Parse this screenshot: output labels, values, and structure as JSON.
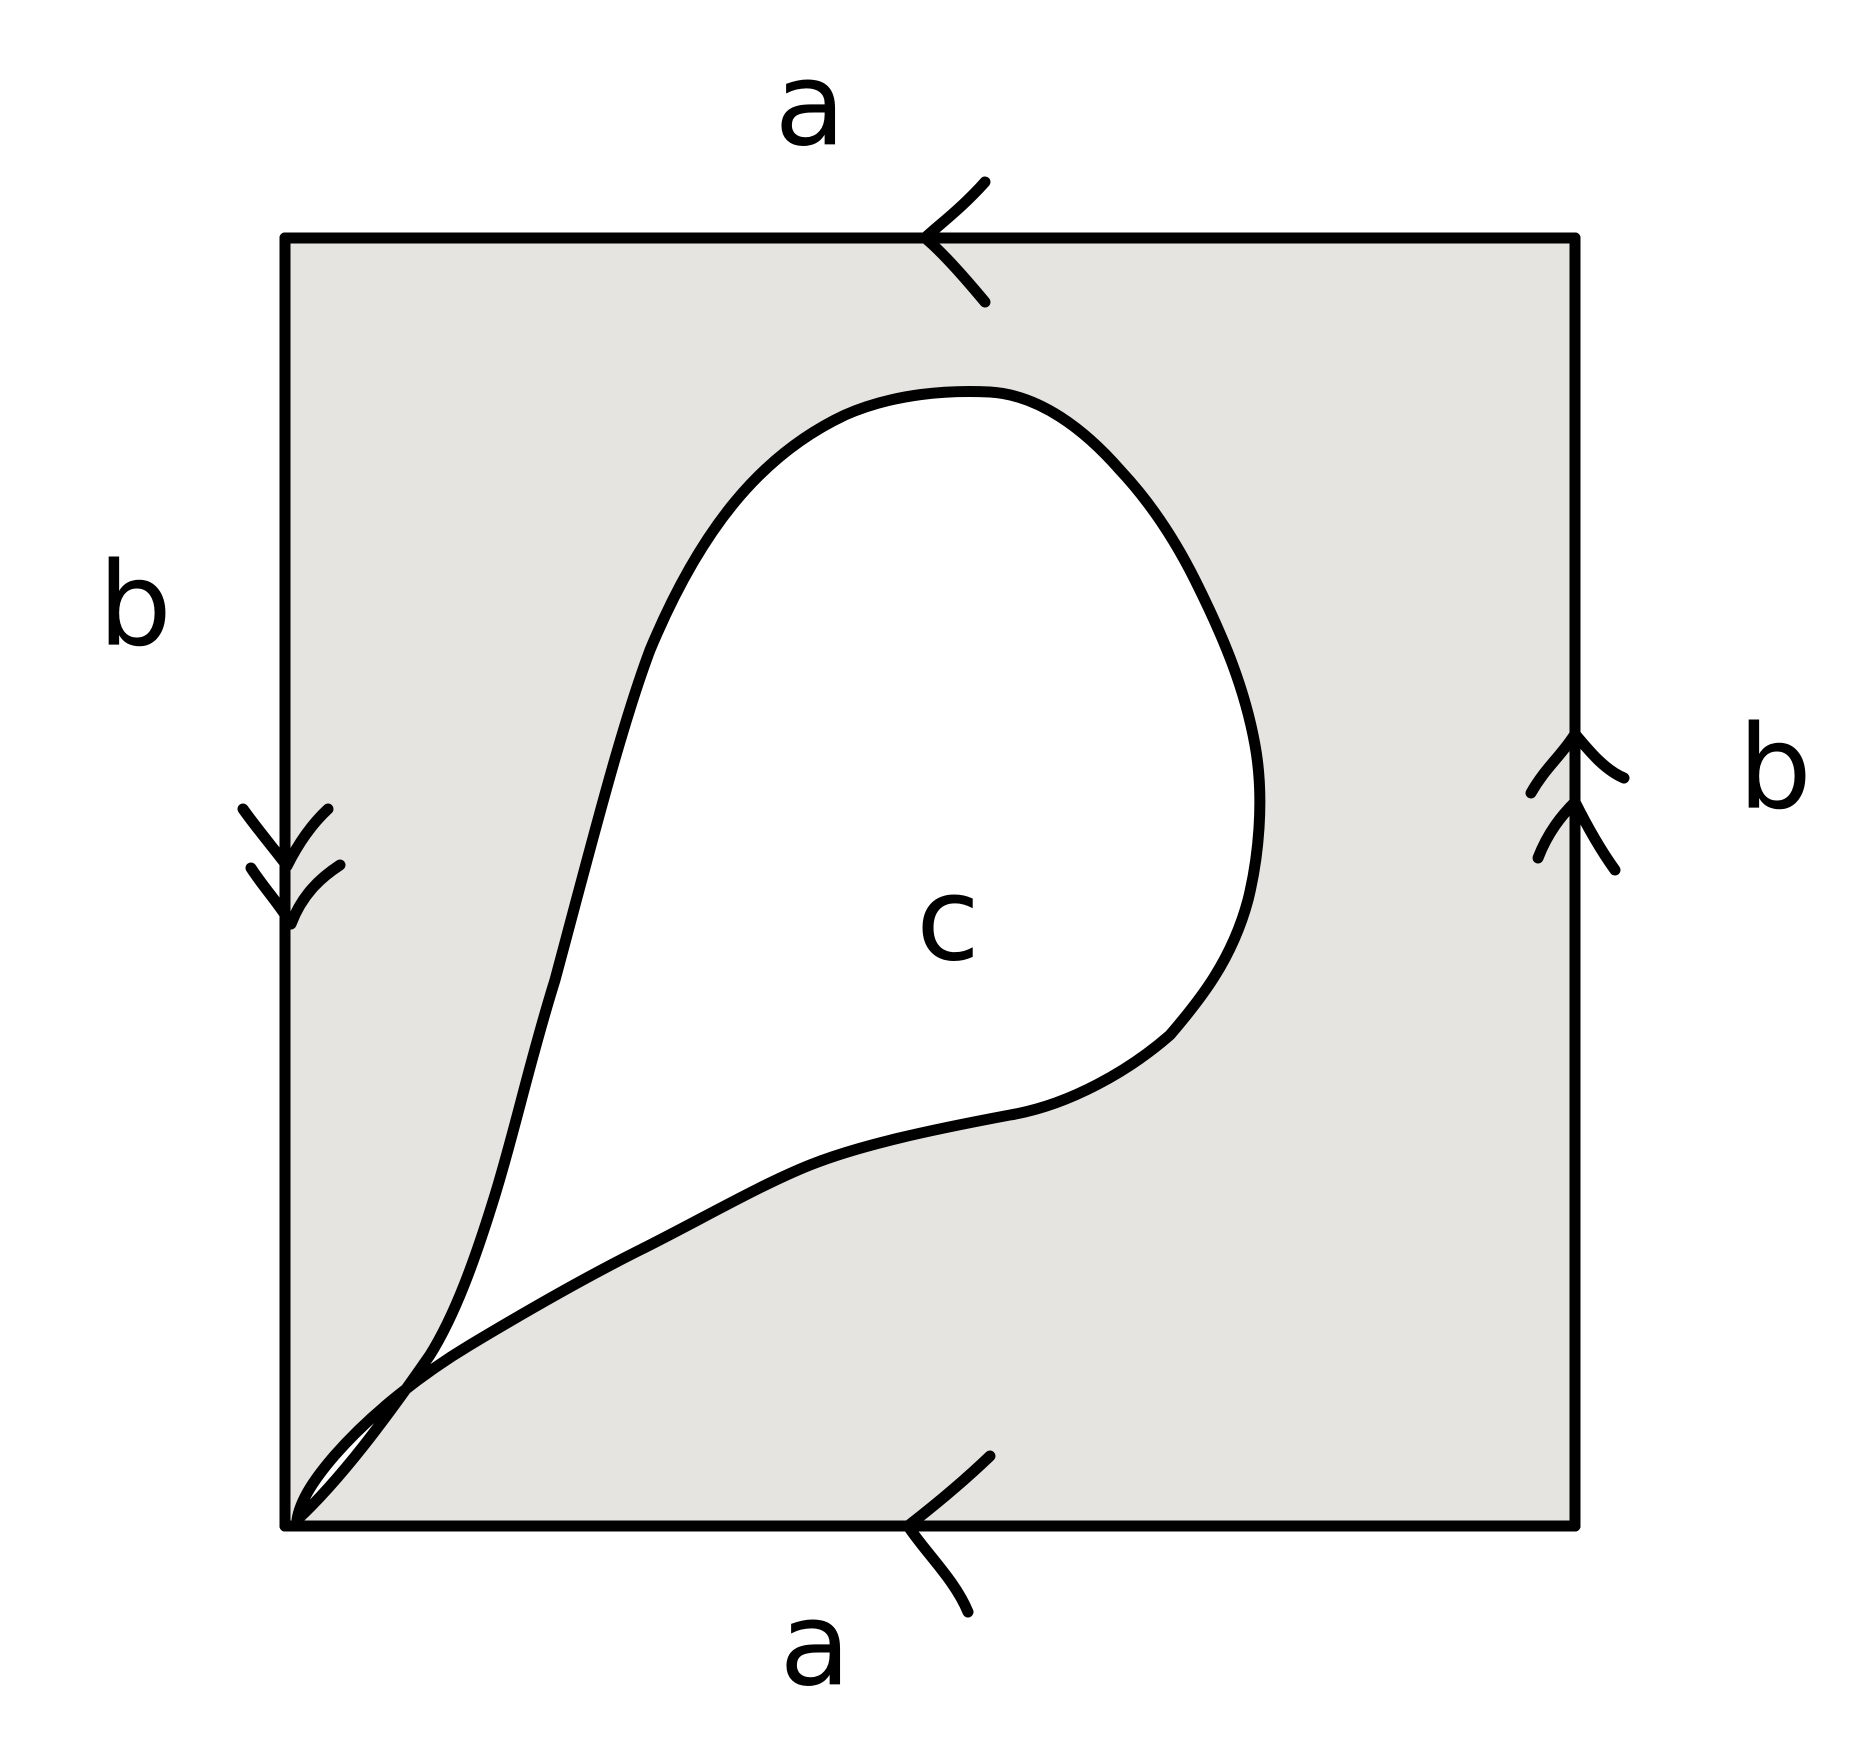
{
  "diagram": {
    "labels": {
      "top_edge": "a",
      "bottom_edge": "a",
      "left_edge": "b",
      "right_edge": "b",
      "loop": "c"
    },
    "colors": {
      "square_fill": "#e6e4e0",
      "loop_fill": "#ffffff",
      "stroke": "#000000"
    }
  }
}
